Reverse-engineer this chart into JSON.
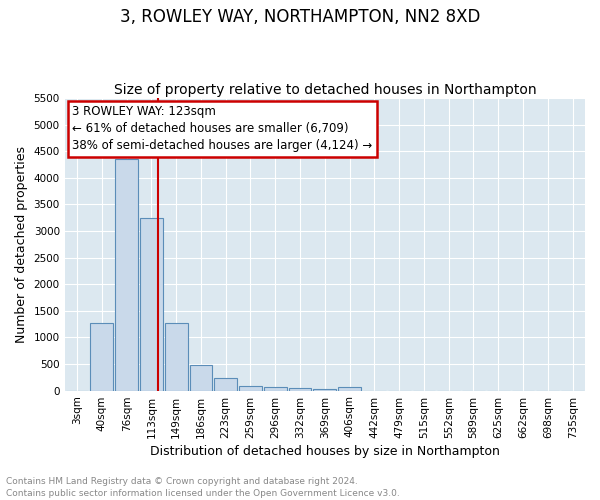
{
  "title": "3, ROWLEY WAY, NORTHAMPTON, NN2 8XD",
  "subtitle": "Size of property relative to detached houses in Northampton",
  "xlabel": "Distribution of detached houses by size in Northampton",
  "ylabel": "Number of detached properties",
  "bar_labels": [
    "3sqm",
    "40sqm",
    "76sqm",
    "113sqm",
    "149sqm",
    "186sqm",
    "223sqm",
    "259sqm",
    "296sqm",
    "332sqm",
    "369sqm",
    "406sqm",
    "442sqm",
    "479sqm",
    "515sqm",
    "552sqm",
    "589sqm",
    "625sqm",
    "662sqm",
    "698sqm",
    "735sqm"
  ],
  "bar_values": [
    0,
    1270,
    4350,
    3250,
    1270,
    475,
    240,
    90,
    70,
    40,
    35,
    60,
    0,
    0,
    0,
    0,
    0,
    0,
    0,
    0,
    0
  ],
  "bar_color": "#c9d9ea",
  "bar_edgecolor": "#5b8db8",
  "vline_color": "#cc0000",
  "vline_pos": 3.28,
  "ylim": [
    0,
    5500
  ],
  "yticks": [
    0,
    500,
    1000,
    1500,
    2000,
    2500,
    3000,
    3500,
    4000,
    4500,
    5000,
    5500
  ],
  "annotation_line1": "3 ROWLEY WAY: 123sqm",
  "annotation_line2": "← 61% of detached houses are smaller (6,709)",
  "annotation_line3": "38% of semi-detached houses are larger (4,124) →",
  "annotation_border_color": "#cc0000",
  "footnote": "Contains HM Land Registry data © Crown copyright and database right 2024.\nContains public sector information licensed under the Open Government Licence v3.0.",
  "fig_bg_color": "#ffffff",
  "plot_bg_color": "#dce8f0",
  "grid_color": "#ffffff",
  "title_fontsize": 12,
  "subtitle_fontsize": 10,
  "axis_label_fontsize": 9,
  "tick_fontsize": 7.5,
  "annotation_fontsize": 8.5,
  "footnote_fontsize": 6.5,
  "footnote_color": "#888888"
}
